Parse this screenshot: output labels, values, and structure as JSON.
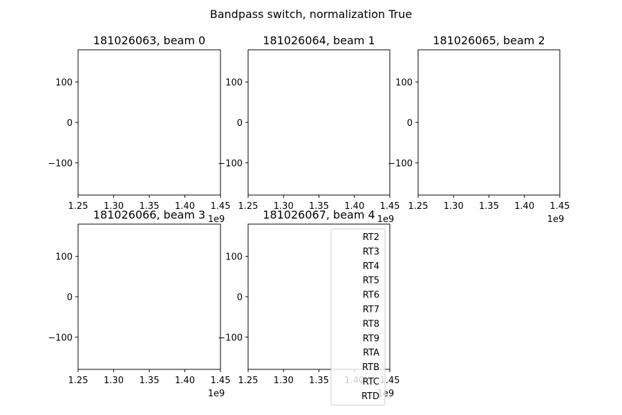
{
  "figure": {
    "suptitle": "Bandpass switch, normalization True"
  },
  "chart_data": {
    "type": "line",
    "grid": false,
    "legend_placement": "lower-right of panel 5",
    "legend_entries": [
      "RT2",
      "RT3",
      "RT4",
      "RT5",
      "RT6",
      "RT7",
      "RT8",
      "RT9",
      "RTA",
      "RTB",
      "RTC",
      "RTD"
    ],
    "panels": [
      {
        "title": "181026063, beam 0",
        "xlim": [
          1250000000,
          1450000000
        ],
        "ylim": [
          -180,
          180
        ],
        "x_ticks": [
          1.25,
          1.3,
          1.35,
          1.4,
          1.45
        ],
        "x_tick_labels": [
          "1.25",
          "1.30",
          "1.35",
          "1.40",
          "1.45"
        ],
        "x_offset_label": "1e9",
        "y_ticks": [
          100,
          0,
          -100
        ],
        "y_tick_labels": [
          "100",
          "0",
          "−100"
        ],
        "series": []
      },
      {
        "title": "181026064, beam 1",
        "xlim": [
          1250000000,
          1450000000
        ],
        "ylim": [
          -180,
          180
        ],
        "x_ticks": [
          1.25,
          1.3,
          1.35,
          1.4,
          1.45
        ],
        "x_tick_labels": [
          "1.25",
          "1.30",
          "1.35",
          "1.40",
          "1.45"
        ],
        "x_offset_label": "1e9",
        "y_ticks": [
          100,
          0,
          -100
        ],
        "y_tick_labels": [
          "100",
          "0",
          "−100"
        ],
        "series": []
      },
      {
        "title": "181026065, beam 2",
        "xlim": [
          1250000000,
          1450000000
        ],
        "ylim": [
          -180,
          180
        ],
        "x_ticks": [
          1.25,
          1.3,
          1.35,
          1.4,
          1.45
        ],
        "x_tick_labels": [
          "1.25",
          "1.30",
          "1.35",
          "1.40",
          "1.45"
        ],
        "x_offset_label": "1e9",
        "y_ticks": [
          100,
          0,
          -100
        ],
        "y_tick_labels": [
          "100",
          "0",
          "−100"
        ],
        "series": []
      },
      {
        "title": "181026066, beam 3",
        "xlim": [
          1250000000,
          1450000000
        ],
        "ylim": [
          -180,
          180
        ],
        "x_ticks": [
          1.25,
          1.3,
          1.35,
          1.4,
          1.45
        ],
        "x_tick_labels": [
          "1.25",
          "1.30",
          "1.35",
          "1.40",
          "1.45"
        ],
        "x_offset_label": "1e9",
        "y_ticks": [
          100,
          0,
          -100
        ],
        "y_tick_labels": [
          "100",
          "0",
          "−100"
        ],
        "series": []
      },
      {
        "title": "181026067, beam 4",
        "xlim": [
          1250000000,
          1450000000
        ],
        "ylim": [
          -180,
          180
        ],
        "x_ticks": [
          1.25,
          1.3,
          1.35,
          1.4,
          1.45
        ],
        "x_tick_labels": [
          "1.25",
          "1.30",
          "1.35",
          "1.40",
          "1.45"
        ],
        "x_offset_label": "1e9",
        "y_ticks": [
          100,
          0,
          -100
        ],
        "y_tick_labels": [
          "100",
          "0",
          "−100"
        ],
        "series": []
      }
    ]
  }
}
